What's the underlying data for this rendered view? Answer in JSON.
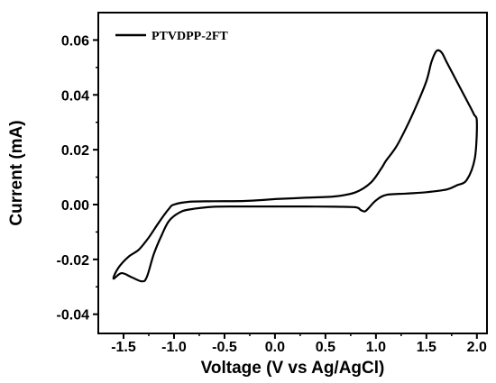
{
  "chart_data": {
    "type": "line",
    "xlabel": "Voltage (V vs Ag/AgCl)",
    "ylabel": "Current (mA)",
    "xlim": [
      -1.75,
      2.1
    ],
    "ylim": [
      -0.047,
      0.07
    ],
    "x_ticks": [
      -1.5,
      -1.0,
      -0.5,
      0.0,
      0.5,
      1.0,
      1.5,
      2.0
    ],
    "x_tick_labels": [
      "-1.5",
      "-1.0",
      "-0.5",
      "0.0",
      "0.5",
      "1.0",
      "1.5",
      "2.0"
    ],
    "y_ticks": [
      -0.04,
      -0.02,
      0.0,
      0.02,
      0.04,
      0.06
    ],
    "y_tick_labels": [
      "-0.04",
      "-0.02",
      "0.00",
      "0.02",
      "0.04",
      "0.06"
    ],
    "grid": false,
    "legend_position": "top-left",
    "series": [
      {
        "name": "PTVDPP-2FT",
        "color": "#000000",
        "x": [
          0.0,
          0.3,
          0.6,
          0.8,
          0.95,
          1.05,
          1.1,
          1.2,
          1.3,
          1.4,
          1.5,
          1.55,
          1.6,
          1.65,
          1.7,
          1.8,
          1.9,
          1.97,
          2.0,
          1.98,
          1.9,
          1.8,
          1.7,
          1.5,
          1.3,
          1.1,
          1.0,
          0.93,
          0.89,
          0.85,
          0.8,
          0.6,
          0.3,
          0.0,
          -0.3,
          -0.6,
          -0.85,
          -0.95,
          -1.05,
          -1.12,
          -1.2,
          -1.27,
          -1.32,
          -1.42,
          -1.52,
          -1.6,
          -1.55,
          -1.45,
          -1.35,
          -1.25,
          -1.15,
          -1.05,
          -1.0,
          -0.85,
          -0.6,
          -0.3,
          0.0
        ],
        "y": [
          0.002,
          0.0025,
          0.003,
          0.0045,
          0.008,
          0.013,
          0.016,
          0.021,
          0.028,
          0.036,
          0.045,
          0.052,
          0.056,
          0.0555,
          0.052,
          0.045,
          0.038,
          0.033,
          0.03,
          0.017,
          0.009,
          0.007,
          0.0055,
          0.0045,
          0.004,
          0.0035,
          0.0015,
          -0.0012,
          -0.0025,
          -0.002,
          -0.001,
          -0.0008,
          -0.0007,
          -0.0007,
          -0.0007,
          -0.0008,
          -0.0018,
          -0.003,
          -0.006,
          -0.011,
          -0.018,
          -0.0265,
          -0.028,
          -0.0265,
          -0.025,
          -0.027,
          -0.023,
          -0.019,
          -0.0165,
          -0.012,
          -0.0065,
          -0.0015,
          0.0,
          0.001,
          0.0012,
          0.0013,
          0.002
        ]
      }
    ]
  }
}
